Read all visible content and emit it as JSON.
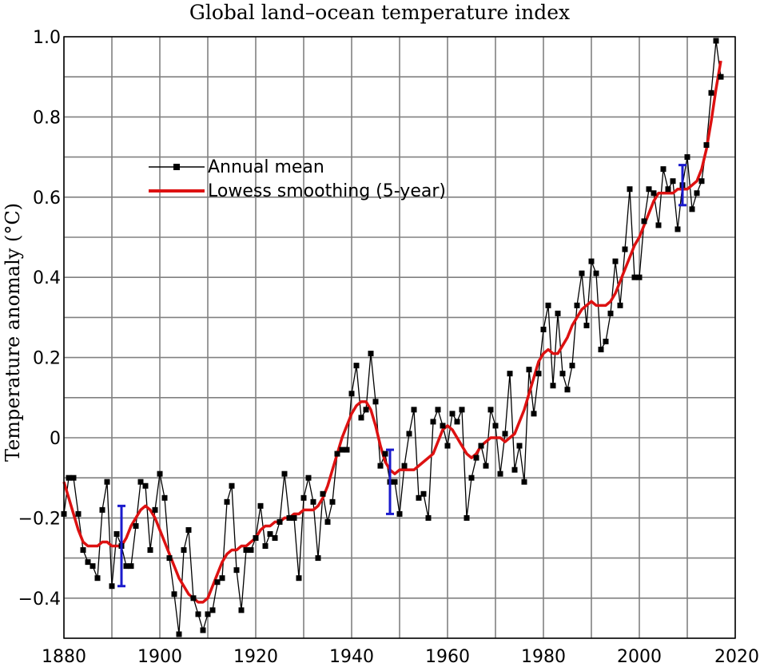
{
  "chart_data": {
    "type": "line",
    "title": "Global land–ocean temperature index",
    "xlabel": "",
    "ylabel": "Temperature anomaly (°C)",
    "xlim": [
      1880,
      2020
    ],
    "ylim": [
      -0.5,
      1.0
    ],
    "grid": true,
    "legend_position": "upper-left",
    "x_ticks": [
      1880,
      1900,
      1920,
      1940,
      1960,
      1980,
      2000,
      2020
    ],
    "x_tick_labels": [
      "1880",
      "1900",
      "1920",
      "1940",
      "1960",
      "1980",
      "2000",
      "2020"
    ],
    "y_ticks": [
      -0.4,
      -0.2,
      0,
      0.2,
      0.4,
      0.6,
      0.8,
      1.0
    ],
    "y_tick_labels": [
      "−0.4",
      "−0.2",
      "0",
      "0.2",
      "0.4",
      "0.6",
      "0.8",
      "1.0"
    ],
    "series": [
      {
        "name": "Annual mean",
        "color": "#000000",
        "marker": "square",
        "x": [
          1880,
          1881,
          1882,
          1883,
          1884,
          1885,
          1886,
          1887,
          1888,
          1889,
          1890,
          1891,
          1892,
          1893,
          1894,
          1895,
          1896,
          1897,
          1898,
          1899,
          1900,
          1901,
          1902,
          1903,
          1904,
          1905,
          1906,
          1907,
          1908,
          1909,
          1910,
          1911,
          1912,
          1913,
          1914,
          1915,
          1916,
          1917,
          1918,
          1919,
          1920,
          1921,
          1922,
          1923,
          1924,
          1925,
          1926,
          1927,
          1928,
          1929,
          1930,
          1931,
          1932,
          1933,
          1934,
          1935,
          1936,
          1937,
          1938,
          1939,
          1940,
          1941,
          1942,
          1943,
          1944,
          1945,
          1946,
          1947,
          1948,
          1949,
          1950,
          1951,
          1952,
          1953,
          1954,
          1955,
          1956,
          1957,
          1958,
          1959,
          1960,
          1961,
          1962,
          1963,
          1964,
          1965,
          1966,
          1967,
          1968,
          1969,
          1970,
          1971,
          1972,
          1973,
          1974,
          1975,
          1976,
          1977,
          1978,
          1979,
          1980,
          1981,
          1982,
          1983,
          1984,
          1985,
          1986,
          1987,
          1988,
          1989,
          1990,
          1991,
          1992,
          1993,
          1994,
          1995,
          1996,
          1997,
          1998,
          1999,
          2000,
          2001,
          2002,
          2003,
          2004,
          2005,
          2006,
          2007,
          2008,
          2009,
          2010,
          2011,
          2012,
          2013,
          2014,
          2015,
          2016,
          2017
        ],
        "values": [
          -0.19,
          -0.1,
          -0.1,
          -0.19,
          -0.28,
          -0.31,
          -0.32,
          -0.35,
          -0.18,
          -0.11,
          -0.37,
          -0.24,
          -0.27,
          -0.32,
          -0.32,
          -0.22,
          -0.11,
          -0.12,
          -0.28,
          -0.18,
          -0.09,
          -0.15,
          -0.3,
          -0.39,
          -0.49,
          -0.28,
          -0.23,
          -0.4,
          -0.44,
          -0.48,
          -0.44,
          -0.43,
          -0.36,
          -0.35,
          -0.16,
          -0.12,
          -0.33,
          -0.43,
          -0.28,
          -0.28,
          -0.25,
          -0.17,
          -0.27,
          -0.24,
          -0.25,
          -0.21,
          -0.09,
          -0.2,
          -0.2,
          -0.35,
          -0.15,
          -0.1,
          -0.16,
          -0.3,
          -0.14,
          -0.21,
          -0.16,
          -0.04,
          -0.03,
          -0.03,
          0.11,
          0.18,
          0.05,
          0.07,
          0.21,
          0.09,
          -0.07,
          -0.04,
          -0.11,
          -0.11,
          -0.19,
          -0.07,
          0.01,
          0.07,
          -0.15,
          -0.14,
          -0.2,
          0.04,
          0.07,
          0.03,
          -0.02,
          0.06,
          0.04,
          0.07,
          -0.2,
          -0.1,
          -0.05,
          -0.02,
          -0.07,
          0.07,
          0.03,
          -0.09,
          0.01,
          0.16,
          -0.08,
          -0.02,
          -0.11,
          0.17,
          0.06,
          0.16,
          0.27,
          0.33,
          0.13,
          0.31,
          0.16,
          0.12,
          0.18,
          0.33,
          0.41,
          0.28,
          0.44,
          0.41,
          0.22,
          0.24,
          0.31,
          0.44,
          0.33,
          0.47,
          0.62,
          0.4,
          0.4,
          0.54,
          0.62,
          0.61,
          0.53,
          0.67,
          0.62,
          0.64,
          0.52,
          0.63,
          0.7,
          0.57,
          0.61,
          0.64,
          0.73,
          0.86,
          0.99,
          0.9
        ]
      },
      {
        "name": "Lowess smoothing (5-year)",
        "color": "#dd1111",
        "x": [
          1880,
          1881,
          1882,
          1883,
          1884,
          1885,
          1886,
          1887,
          1888,
          1889,
          1890,
          1891,
          1892,
          1893,
          1894,
          1895,
          1896,
          1897,
          1898,
          1899,
          1900,
          1901,
          1902,
          1903,
          1904,
          1905,
          1906,
          1907,
          1908,
          1909,
          1910,
          1911,
          1912,
          1913,
          1914,
          1915,
          1916,
          1917,
          1918,
          1919,
          1920,
          1921,
          1922,
          1923,
          1924,
          1925,
          1926,
          1927,
          1928,
          1929,
          1930,
          1931,
          1932,
          1933,
          1934,
          1935,
          1936,
          1937,
          1938,
          1939,
          1940,
          1941,
          1942,
          1943,
          1944,
          1945,
          1946,
          1947,
          1948,
          1949,
          1950,
          1951,
          1952,
          1953,
          1954,
          1955,
          1956,
          1957,
          1958,
          1959,
          1960,
          1961,
          1962,
          1963,
          1964,
          1965,
          1966,
          1967,
          1968,
          1969,
          1970,
          1971,
          1972,
          1973,
          1974,
          1975,
          1976,
          1977,
          1978,
          1979,
          1980,
          1981,
          1982,
          1983,
          1984,
          1985,
          1986,
          1987,
          1988,
          1989,
          1990,
          1991,
          1992,
          1993,
          1994,
          1995,
          1996,
          1997,
          1998,
          1999,
          2000,
          2001,
          2002,
          2003,
          2004,
          2005,
          2006,
          2007,
          2008,
          2009,
          2010,
          2011,
          2012,
          2013,
          2014,
          2015,
          2016,
          2017
        ],
        "values": [
          -0.11,
          -0.15,
          -0.19,
          -0.23,
          -0.26,
          -0.27,
          -0.27,
          -0.27,
          -0.26,
          -0.26,
          -0.27,
          -0.27,
          -0.27,
          -0.25,
          -0.22,
          -0.2,
          -0.18,
          -0.17,
          -0.18,
          -0.2,
          -0.23,
          -0.26,
          -0.29,
          -0.32,
          -0.35,
          -0.37,
          -0.39,
          -0.4,
          -0.41,
          -0.41,
          -0.4,
          -0.37,
          -0.34,
          -0.31,
          -0.29,
          -0.28,
          -0.28,
          -0.27,
          -0.27,
          -0.26,
          -0.25,
          -0.23,
          -0.22,
          -0.22,
          -0.21,
          -0.21,
          -0.2,
          -0.2,
          -0.19,
          -0.19,
          -0.18,
          -0.18,
          -0.18,
          -0.17,
          -0.15,
          -0.12,
          -0.08,
          -0.04,
          0.0,
          0.03,
          0.06,
          0.08,
          0.09,
          0.09,
          0.07,
          0.03,
          -0.02,
          -0.06,
          -0.08,
          -0.09,
          -0.08,
          -0.08,
          -0.08,
          -0.08,
          -0.07,
          -0.06,
          -0.05,
          -0.04,
          -0.01,
          0.02,
          0.03,
          0.02,
          0.0,
          -0.02,
          -0.04,
          -0.05,
          -0.04,
          -0.02,
          -0.01,
          0.0,
          0.0,
          0.0,
          -0.01,
          0.0,
          0.01,
          0.04,
          0.07,
          0.11,
          0.15,
          0.19,
          0.21,
          0.22,
          0.21,
          0.21,
          0.23,
          0.25,
          0.28,
          0.3,
          0.32,
          0.33,
          0.34,
          0.33,
          0.33,
          0.33,
          0.34,
          0.36,
          0.39,
          0.42,
          0.45,
          0.48,
          0.5,
          0.53,
          0.56,
          0.59,
          0.61,
          0.61,
          0.61,
          0.61,
          0.62,
          0.62,
          0.62,
          0.63,
          0.64,
          0.67,
          0.72,
          0.79,
          0.87,
          0.94
        ]
      }
    ],
    "uncertainty_bars": [
      {
        "x": 1892,
        "low": -0.37,
        "high": -0.17
      },
      {
        "x": 1948,
        "low": -0.19,
        "high": -0.03
      },
      {
        "x": 2009,
        "low": 0.58,
        "high": 0.68
      }
    ]
  }
}
